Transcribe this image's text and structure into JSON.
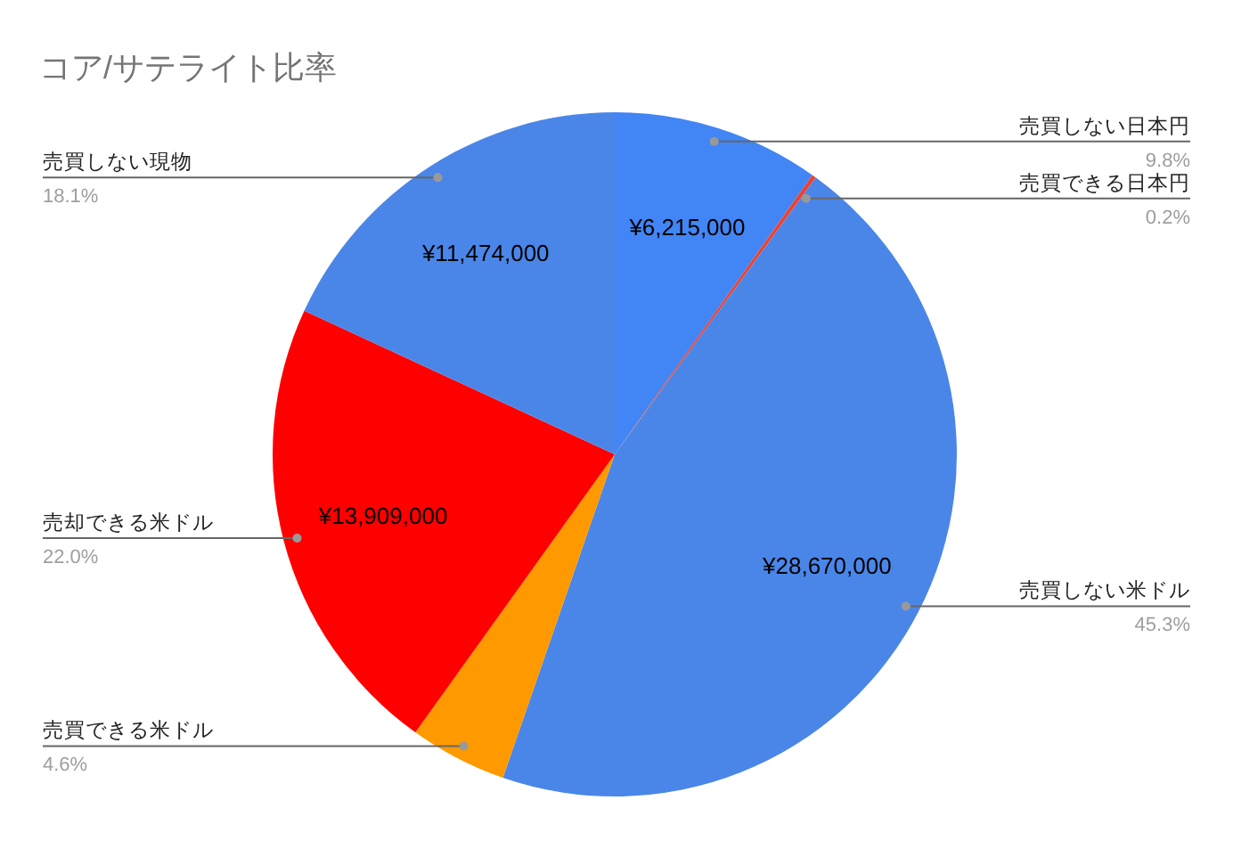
{
  "chart_data": {
    "type": "pie",
    "title": "コア/サテライト比率",
    "categories": [
      "売買しない日本円",
      "売買できる日本円",
      "売買しない米ドル",
      "売買できる米ドル",
      "売却できる米ドル",
      "売買しない現物"
    ],
    "values": [
      9.8,
      0.2,
      45.3,
      4.6,
      22.0,
      18.1
    ],
    "colors": [
      "#4285f4",
      "#ea4335",
      "#4a86e8",
      "#ff9900",
      "#ff0000",
      "#4a86e8"
    ],
    "value_labels": [
      "9.8%",
      "0.2%",
      "45.3%",
      "4.6%",
      "22.0%",
      "18.1%"
    ],
    "annotations": [
      {
        "text": "¥6,215,000",
        "x": "売買しない日本円"
      },
      {
        "text": "¥28,670,000",
        "x": "売買しない米ドル"
      },
      {
        "text": "¥13,909,000",
        "x": "売却できる米ドル"
      },
      {
        "text": "¥11,474,000",
        "x": "売買しない現物"
      }
    ]
  }
}
